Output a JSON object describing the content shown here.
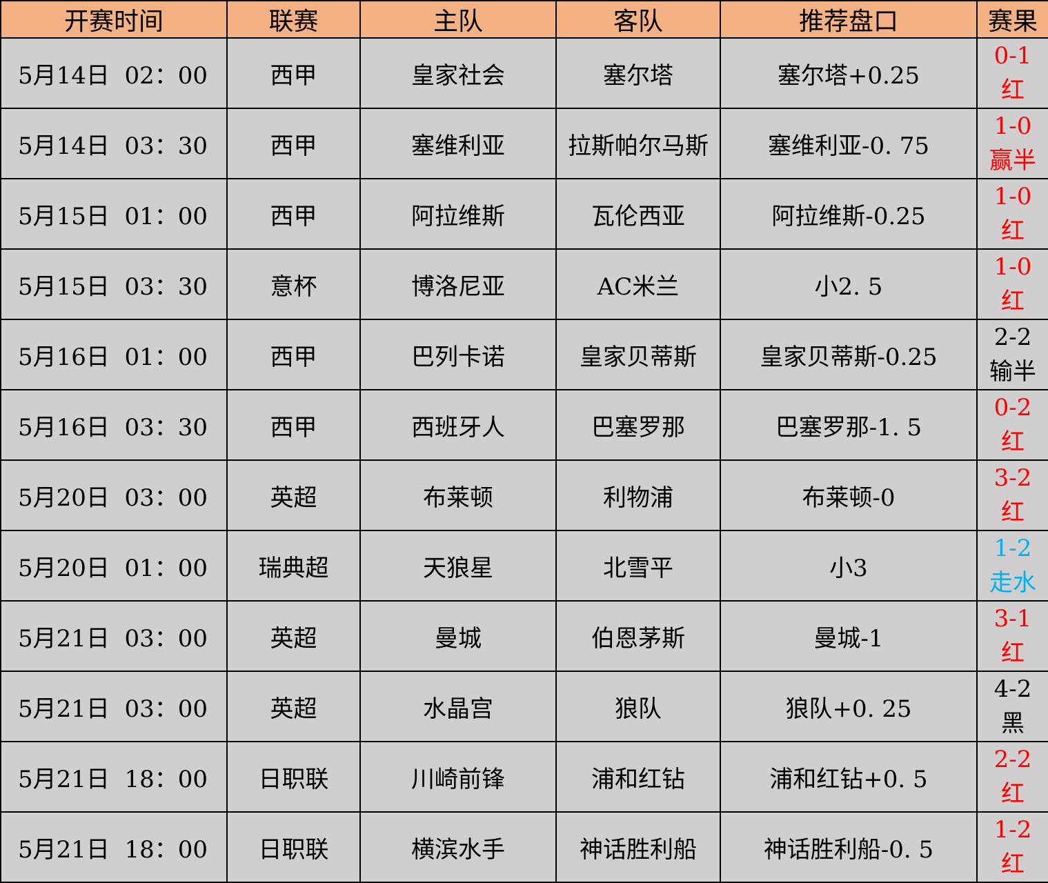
{
  "headers": [
    "开赛时间",
    "联赛",
    "主队",
    "客队",
    "推荐盘口",
    "赛果"
  ],
  "colors": {
    "header_bg": "#F4B183",
    "row_bg": "#D0CECE",
    "red": "#FF0000",
    "blue": "#00B0F0",
    "black": "#000000"
  },
  "rows": [
    {
      "time": "5月14日  02：00",
      "league": "西甲",
      "home": "皇家社会",
      "away": "塞尔塔",
      "pick": "塞尔塔+0.25",
      "score": "0-1",
      "outcome": "红",
      "color": "red"
    },
    {
      "time": "5月14日  03：30",
      "league": "西甲",
      "home": "塞维利亚",
      "away": "拉斯帕尔马斯",
      "pick": "塞维利亚-0. 75",
      "score": "1-0",
      "outcome": "赢半",
      "color": "red"
    },
    {
      "time": "5月15日  01：00",
      "league": "西甲",
      "home": "阿拉维斯",
      "away": "瓦伦西亚",
      "pick": "阿拉维斯-0.25",
      "score": "1-0",
      "outcome": "红",
      "color": "red"
    },
    {
      "time": "5月15日  03：30",
      "league": "意杯",
      "home": "博洛尼亚",
      "away": "AC米兰",
      "pick": "小2. 5",
      "score": "1-0",
      "outcome": "红",
      "color": "red"
    },
    {
      "time": "5月16日  01：00",
      "league": "西甲",
      "home": "巴列卡诺",
      "away": "皇家贝蒂斯",
      "pick": "皇家贝蒂斯-0.25",
      "score": "2-2",
      "outcome": "输半",
      "color": "black"
    },
    {
      "time": "5月16日  03：30",
      "league": "西甲",
      "home": "西班牙人",
      "away": "巴塞罗那",
      "pick": "巴塞罗那-1. 5",
      "score": "0-2",
      "outcome": "红",
      "color": "red"
    },
    {
      "time": "5月20日  03：00",
      "league": "英超",
      "home": "布莱顿",
      "away": "利物浦",
      "pick": "布莱顿-0",
      "score": "3-2",
      "outcome": "红",
      "color": "red"
    },
    {
      "time": "5月20日  01：00",
      "league": "瑞典超",
      "home": "天狼星",
      "away": "北雪平",
      "pick": "小3",
      "score": "1-2",
      "outcome": "走水",
      "color": "blue"
    },
    {
      "time": "5月21日  03：00",
      "league": "英超",
      "home": "曼城",
      "away": "伯恩茅斯",
      "pick": "曼城-1",
      "score": "3-1",
      "outcome": "红",
      "color": "red"
    },
    {
      "time": "5月21日  03：00",
      "league": "英超",
      "home": "水晶宫",
      "away": "狼队",
      "pick": "狼队+0. 25",
      "score": "4-2",
      "outcome": "黑",
      "color": "black"
    },
    {
      "time": "5月21日  18：00",
      "league": "日职联",
      "home": "川崎前锋",
      "away": "浦和红钻",
      "pick": "浦和红钻+0. 5",
      "score": "2-2",
      "outcome": "红",
      "color": "red"
    },
    {
      "time": "5月21日  18：00",
      "league": "日职联",
      "home": "横滨水手",
      "away": "神话胜利船",
      "pick": "神话胜利船-0. 5",
      "score": "1-2",
      "outcome": "红",
      "color": "red"
    }
  ]
}
